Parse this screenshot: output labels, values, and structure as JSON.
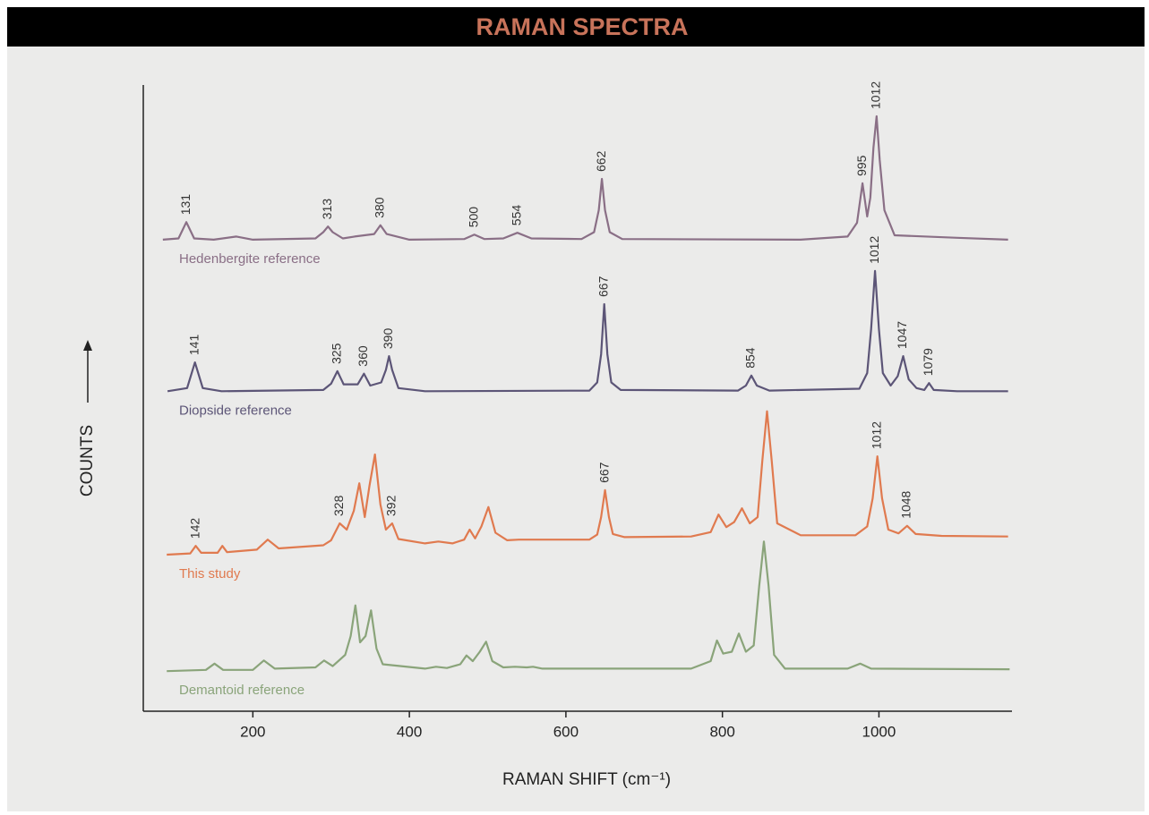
{
  "chart_data": {
    "type": "line",
    "title": "RAMAN SPECTRA",
    "x_label": "RAMAN SHIFT (cm⁻¹)",
    "y_label": "COUNTS",
    "xlim": [
      60,
      1170
    ],
    "xticks": [
      200,
      400,
      600,
      800,
      1000
    ],
    "ylim": [
      0,
      100
    ],
    "series": [
      {
        "name": "Hedenbergite reference",
        "color": "#8a6f86",
        "x": [
          85,
          105,
          115,
          125,
          150,
          179,
          200,
          280,
          290,
          296,
          302,
          315,
          330,
          355,
          363,
          371,
          400,
          470,
          483,
          496,
          520,
          538,
          556,
          620,
          636,
          642,
          646,
          650,
          656,
          672,
          900,
          960,
          972,
          979,
          985,
          989,
          993,
          997,
          1001,
          1007,
          1020,
          1100,
          1165
        ],
        "values": [
          75.3,
          75.5,
          78.1,
          75.5,
          75.3,
          75.8,
          75.3,
          75.5,
          76.5,
          77.4,
          76.5,
          75.5,
          75.8,
          76.2,
          77.6,
          76.2,
          75.3,
          75.4,
          76.1,
          75.4,
          75.5,
          76.4,
          75.5,
          75.4,
          76.5,
          80,
          85,
          80,
          76.5,
          75.4,
          75.3,
          75.8,
          78,
          84.3,
          79,
          82,
          90,
          95,
          88,
          80,
          76,
          75.6,
          75.3
        ]
      },
      {
        "name": "Diopside reference",
        "color": "#5c5577",
        "x": [
          91,
          116,
          126,
          136,
          160,
          290,
          300,
          308,
          316,
          334,
          342,
          350,
          364,
          370,
          374,
          378,
          386,
          420,
          630,
          640,
          645,
          649,
          653,
          658,
          670,
          820,
          830,
          837,
          844,
          860,
          975,
          985,
          990,
          995,
          1000,
          1005,
          1015,
          1024,
          1031,
          1038,
          1048,
          1058,
          1064,
          1070,
          1100,
          1165
        ],
        "values": [
          51.1,
          51.6,
          55.7,
          51.6,
          51.1,
          51.3,
          52.3,
          54.3,
          52.2,
          52.2,
          53.9,
          52,
          52.5,
          54.5,
          56.7,
          54.5,
          51.6,
          51.1,
          51.2,
          52.5,
          57,
          65,
          57,
          52.5,
          51.3,
          51.2,
          52,
          53.6,
          52,
          51.2,
          51.5,
          54,
          61,
          70.3,
          61,
          54,
          52,
          53.5,
          56.7,
          53,
          51.6,
          51.3,
          52.4,
          51.3,
          51.1,
          51.1
        ]
      },
      {
        "name": "This study",
        "color": "#e07a4f",
        "x": [
          90,
          120,
          127,
          134,
          155,
          161,
          167,
          205,
          219,
          233,
          290,
          300,
          311,
          320,
          329,
          336,
          343,
          349,
          356,
          363,
          370,
          378,
          386,
          420,
          437,
          455,
          470,
          477,
          484,
          492,
          501,
          510,
          525,
          540,
          560,
          630,
          640,
          645,
          650,
          655,
          660,
          675,
          760,
          785,
          795,
          805,
          815,
          825,
          835,
          845,
          851,
          857,
          863,
          870,
          900,
          970,
          985,
          992,
          998,
          1004,
          1012,
          1025,
          1036,
          1047,
          1080,
          1165
        ],
        "values": [
          25,
          25.2,
          26.4,
          25.3,
          25.3,
          26.4,
          25.4,
          25.8,
          27.4,
          26,
          26.5,
          27.3,
          30,
          29,
          32,
          36.4,
          31,
          36,
          41,
          33,
          29,
          30,
          27.5,
          26.8,
          27.1,
          26.8,
          27.4,
          29,
          27.6,
          29.5,
          32.6,
          28.5,
          27.3,
          27.4,
          27.4,
          27.4,
          28.2,
          31,
          35.3,
          31,
          28.3,
          27.8,
          27.9,
          28.6,
          31.4,
          29.4,
          30.2,
          32.4,
          30,
          31,
          40,
          47.9,
          40,
          30,
          28.1,
          28.1,
          29.5,
          34,
          40.7,
          34,
          29,
          28.4,
          29.6,
          28.3,
          28,
          27.9
        ]
      },
      {
        "name": "Demantoid reference",
        "color": "#8aa47a",
        "x": [
          90,
          140,
          151,
          162,
          200,
          214,
          228,
          280,
          291,
          302,
          318,
          325,
          331,
          337,
          344,
          351,
          358,
          366,
          420,
          434,
          448,
          465,
          473,
          481,
          490,
          498,
          506,
          520,
          535,
          550,
          558,
          570,
          760,
          785,
          793,
          801,
          812,
          821,
          830,
          840,
          847,
          853,
          859,
          866,
          880,
          960,
          976,
          990,
          1167
        ],
        "values": [
          6.4,
          6.6,
          7.6,
          6.6,
          6.6,
          8.1,
          6.8,
          7.0,
          8.1,
          7.2,
          9,
          12,
          16.9,
          11,
          12,
          16.1,
          10,
          7.5,
          6.8,
          7.1,
          6.9,
          7.5,
          8.9,
          8,
          9.5,
          11.1,
          8,
          7,
          7.1,
          7,
          7.1,
          6.8,
          6.8,
          8,
          11.3,
          9.2,
          9.5,
          12.4,
          9.5,
          10.5,
          20,
          27.1,
          20,
          9,
          6.8,
          6.8,
          7.6,
          6.8,
          6.7
        ]
      }
    ],
    "annotations": [
      {
        "label": "131",
        "x": 115,
        "y": 78.1
      },
      {
        "label": "313",
        "x": 296,
        "y": 77.4
      },
      {
        "label": "380",
        "x": 363,
        "y": 77.6
      },
      {
        "label": "500",
        "x": 483,
        "y": 76.1
      },
      {
        "label": "554",
        "x": 538,
        "y": 76.4
      },
      {
        "label": "662",
        "x": 646,
        "y": 85
      },
      {
        "label": "995",
        "x": 979,
        "y": 84.3
      },
      {
        "label": "1012",
        "x": 997,
        "y": 95
      },
      {
        "label": "141",
        "x": 126,
        "y": 55.7
      },
      {
        "label": "325",
        "x": 308,
        "y": 54.3
      },
      {
        "label": "360",
        "x": 342,
        "y": 53.9
      },
      {
        "label": "390",
        "x": 374,
        "y": 56.7
      },
      {
        "label": "667",
        "x": 649,
        "y": 65
      },
      {
        "label": "854",
        "x": 837,
        "y": 53.6
      },
      {
        "label": "1012",
        "x": 995,
        "y": 70.3
      },
      {
        "label": "1047",
        "x": 1031,
        "y": 56.7
      },
      {
        "label": "1079",
        "x": 1064,
        "y": 52.4
      },
      {
        "label": "142",
        "x": 127,
        "y": 26.4
      },
      {
        "label": "328",
        "x": 311,
        "y": 30
      },
      {
        "label": "392",
        "x": 378,
        "y": 30
      },
      {
        "label": "667",
        "x": 650,
        "y": 35.3
      },
      {
        "label": "1012",
        "x": 998,
        "y": 40.7
      },
      {
        "label": "1048",
        "x": 1036,
        "y": 29.6
      }
    ]
  }
}
